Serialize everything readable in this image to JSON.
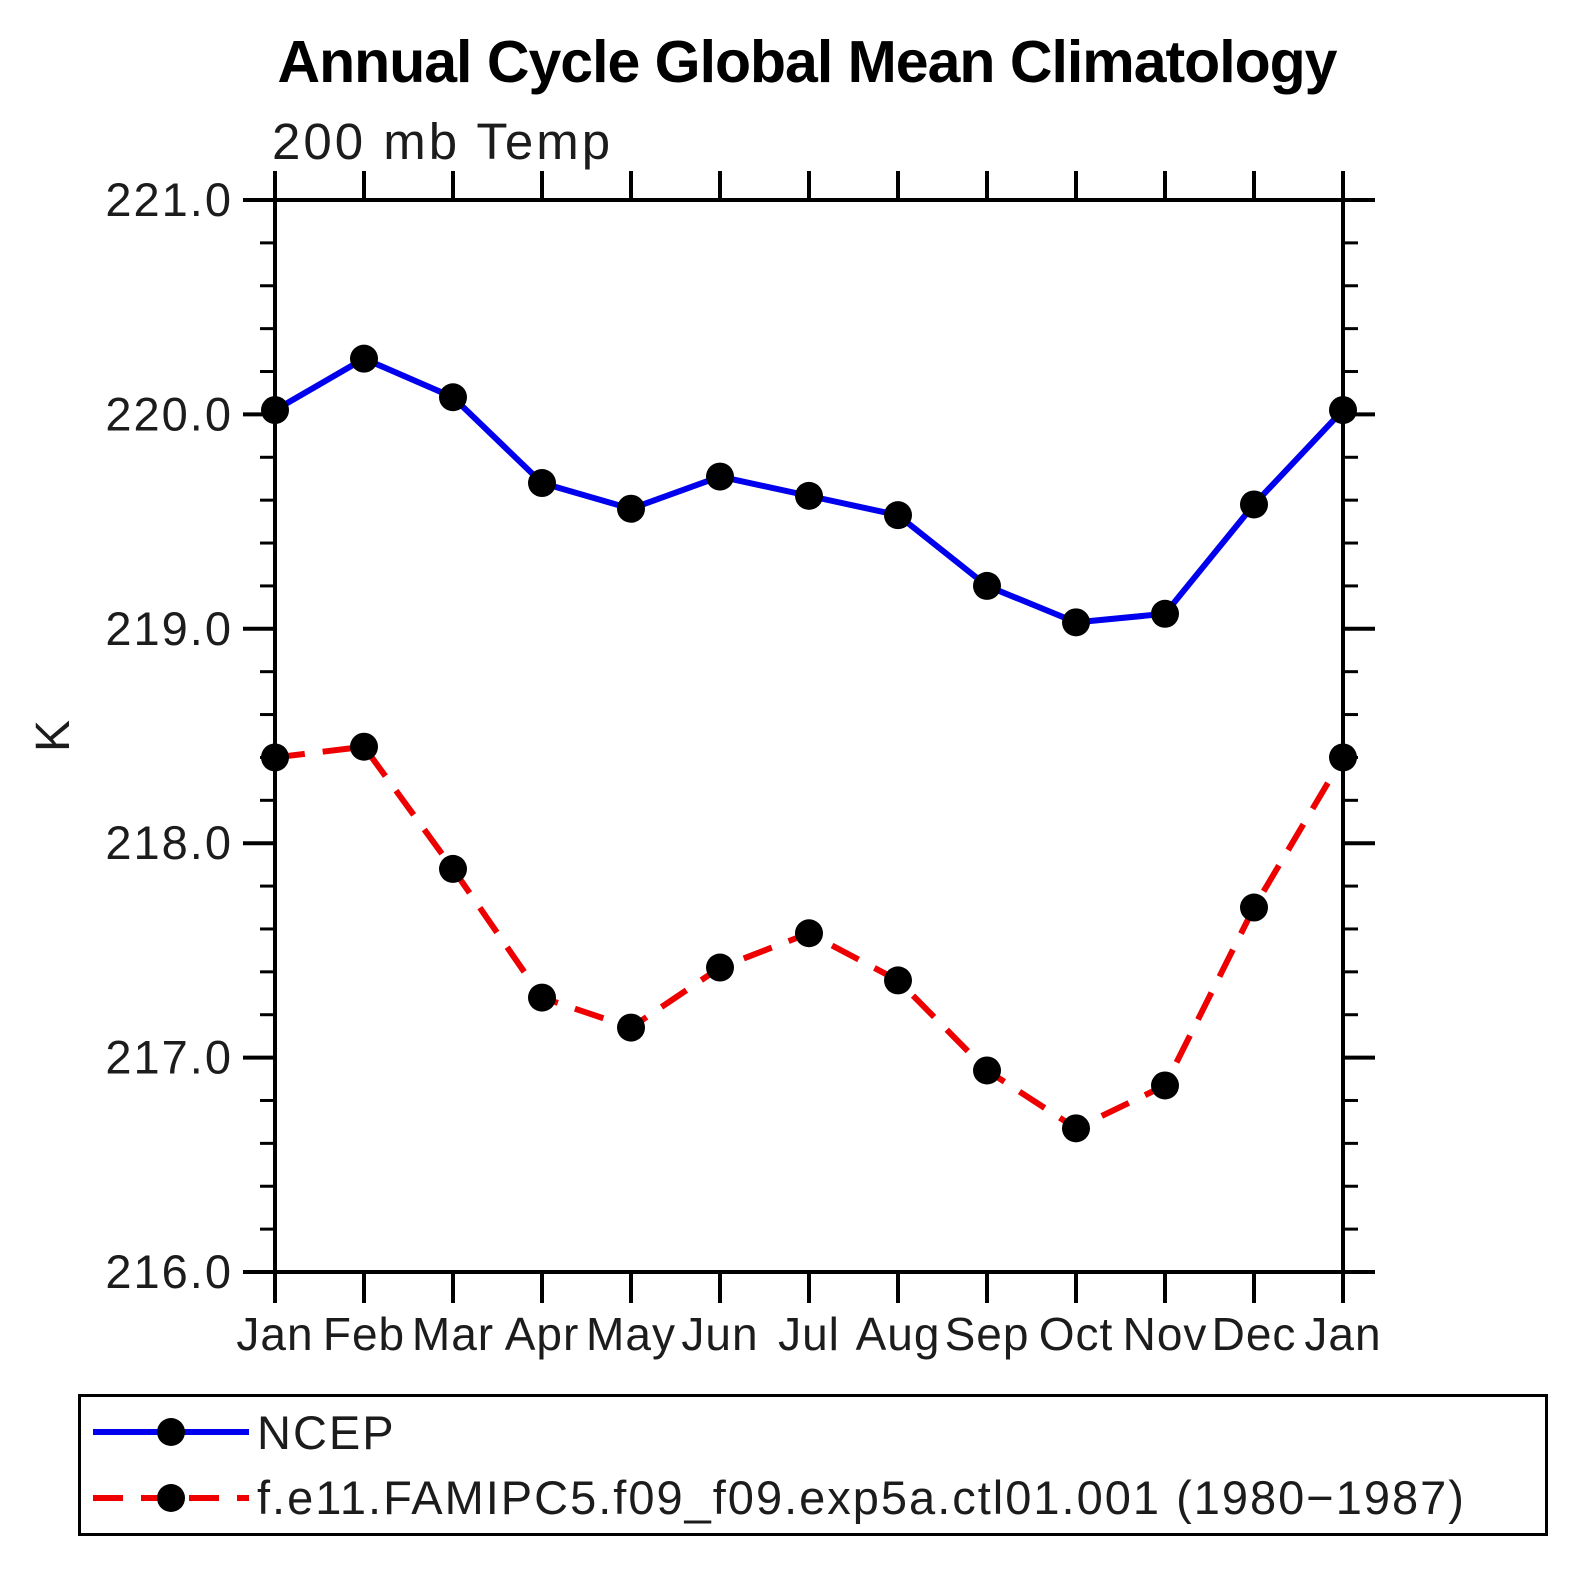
{
  "title": "Annual Cycle Global Mean Climatology",
  "chart_data": {
    "type": "line",
    "title": "Annual Cycle Global Mean Climatology",
    "subtitle": "200 mb Temp",
    "ylabel": "K",
    "xlabel": "",
    "ylim": [
      216.0,
      221.0
    ],
    "ytick_major": 1.0,
    "ytick_minor": 0.2,
    "ytick_labels": [
      "216.0",
      "217.0",
      "218.0",
      "219.0",
      "220.0",
      "221.0"
    ],
    "grid": false,
    "legend_position": "bottom",
    "categories": [
      "Jan",
      "Feb",
      "Mar",
      "Apr",
      "May",
      "Jun",
      "Jul",
      "Aug",
      "Sep",
      "Oct",
      "Nov",
      "Dec",
      "Jan"
    ],
    "series": [
      {
        "name": "NCEP",
        "color": "#0000ee",
        "line_style": "solid",
        "marker": "circle",
        "marker_color": "#000000",
        "values": [
          220.02,
          220.26,
          220.08,
          219.68,
          219.56,
          219.71,
          219.62,
          219.53,
          219.2,
          219.03,
          219.07,
          219.58,
          220.02
        ]
      },
      {
        "name": "f.e11.FAMIPC5.f09_f09.exp5a.ctl01.001 (1980−1987)",
        "color": "#ee0000",
        "line_style": "dashed",
        "marker": "circle",
        "marker_color": "#000000",
        "values": [
          218.4,
          218.45,
          217.88,
          217.28,
          217.14,
          217.42,
          217.58,
          217.36,
          216.94,
          216.67,
          216.87,
          217.7,
          218.4
        ]
      }
    ]
  }
}
